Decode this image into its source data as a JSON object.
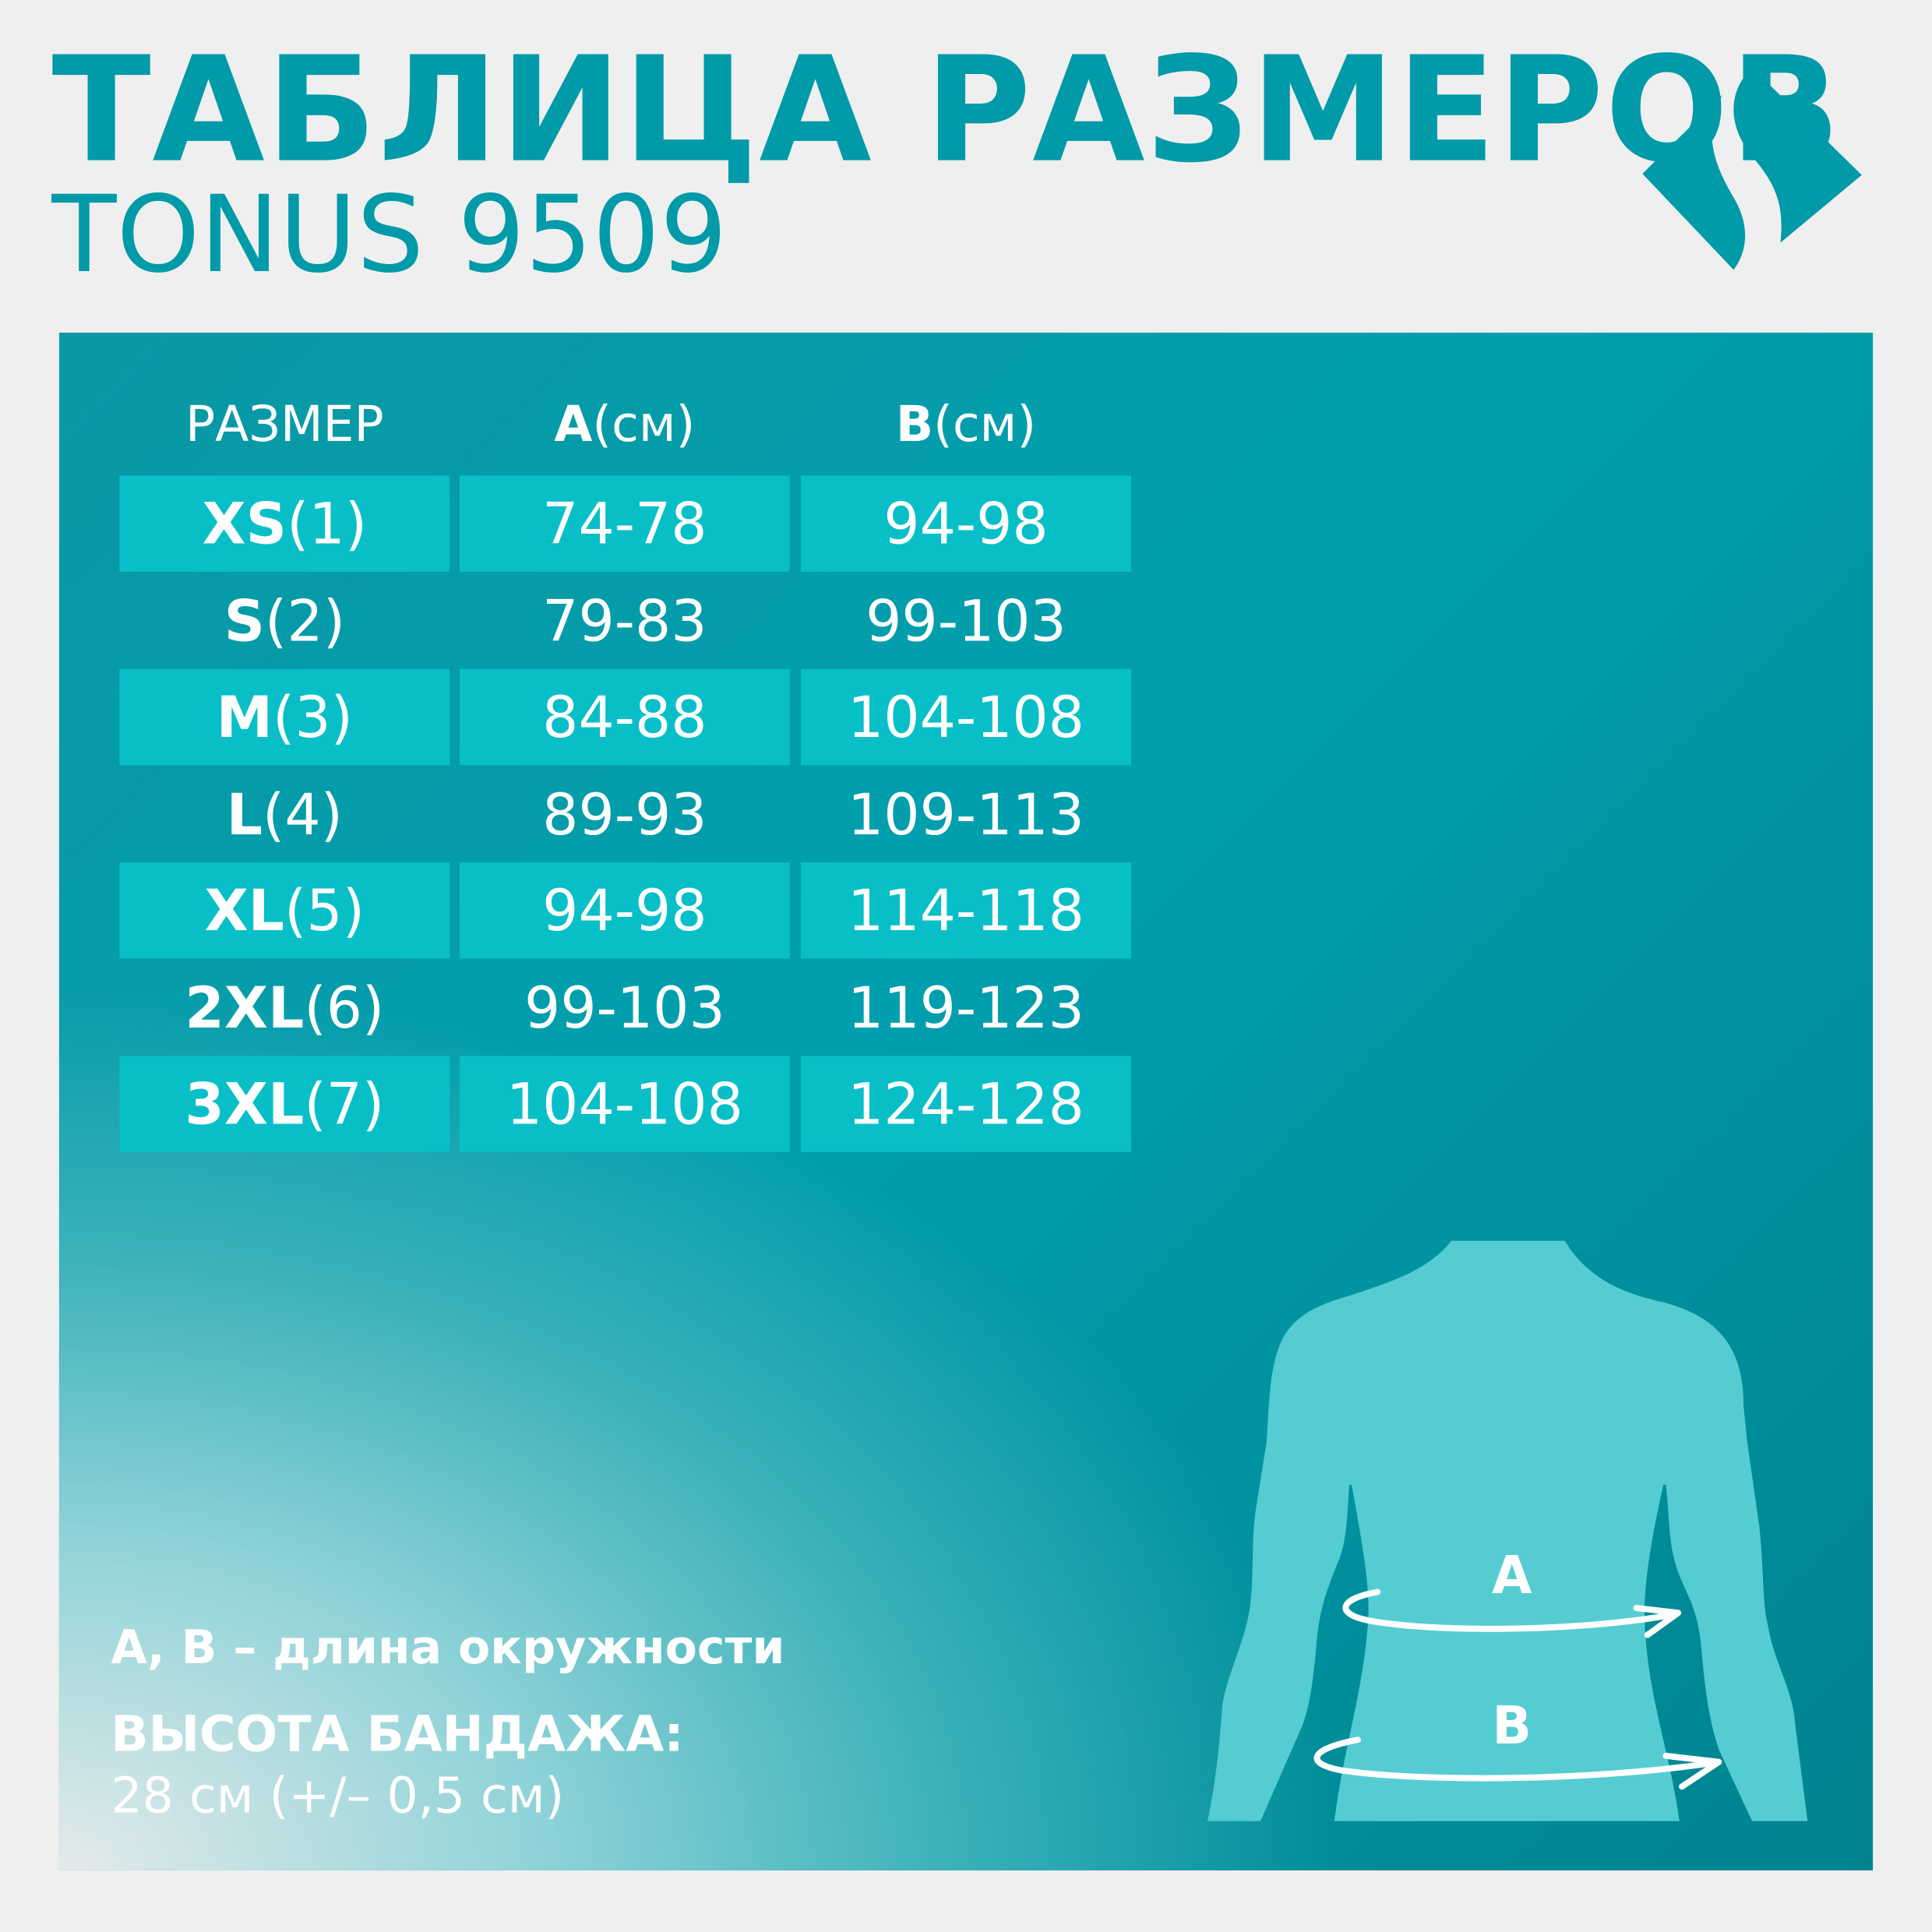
{
  "title": "ТАБЛИЦА РАЗМЕРОВ",
  "subtitle": "TONUS 9509",
  "colors": {
    "brand": "#009aa8",
    "cell": "#08bfc8",
    "figure": "#55ccd2"
  },
  "table": {
    "headers": [
      {
        "bold": "",
        "text": "РАЗМЕР"
      },
      {
        "bold": "A",
        "text": "(см)"
      },
      {
        "bold": "B",
        "text": "(см)"
      }
    ],
    "rows": [
      {
        "size": "XS",
        "num": "(1)",
        "a": "74-78",
        "b": "94-98"
      },
      {
        "size": "S",
        "num": "(2)",
        "a": "79-83",
        "b": "99-103"
      },
      {
        "size": "M",
        "num": "(3)",
        "a": "84-88",
        "b": "104-108"
      },
      {
        "size": "L",
        "num": "(4)",
        "a": "89-93",
        "b": "109-113"
      },
      {
        "size": "XL",
        "num": "(5)",
        "a": "94-98",
        "b": "114-118"
      },
      {
        "size": "2XL",
        "num": "(6)",
        "a": "99-103",
        "b": "119-123"
      },
      {
        "size": "3XL",
        "num": "(7)",
        "a": "104-108",
        "b": "124-128"
      }
    ]
  },
  "figure": {
    "label_a": "A",
    "label_b": "B"
  },
  "notes": {
    "legend": "А, В – длина окружности",
    "height_label": "ВЫСОТА БАНДАЖА:",
    "height_value": "28 см (+/– 0,5 см)"
  }
}
